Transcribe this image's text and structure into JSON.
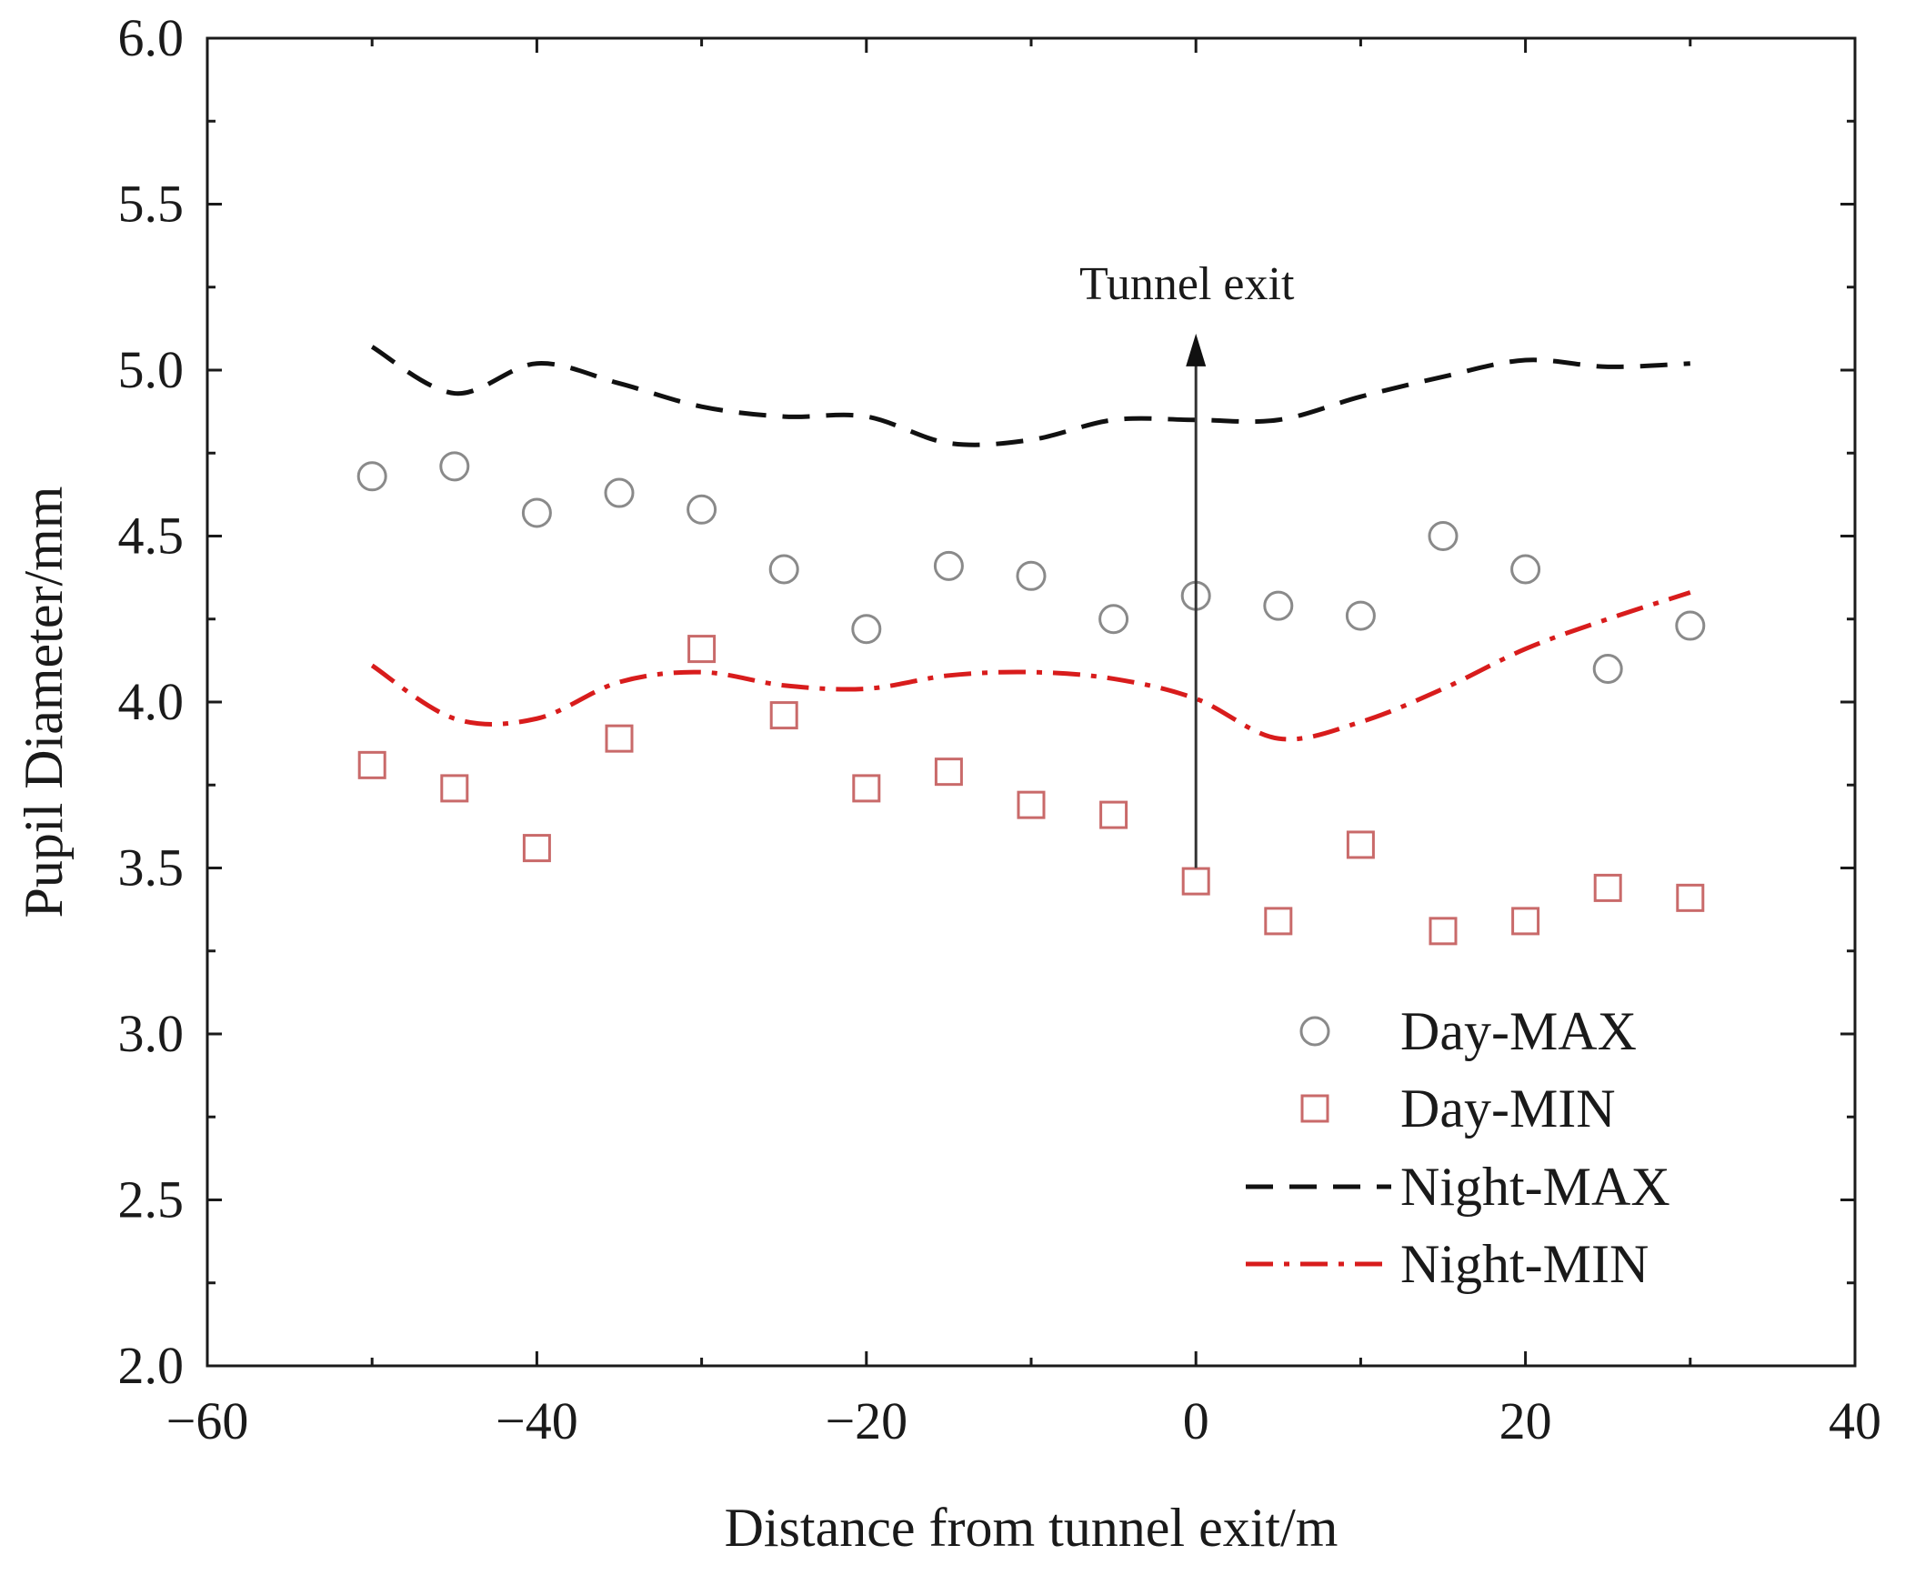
{
  "chart_data": {
    "type": "scatter",
    "xlabel": "Distance from tunnel exit/m",
    "ylabel": "Pupil Diameter/mm",
    "xlim": [
      -60,
      40
    ],
    "ylim": [
      2.0,
      6.0
    ],
    "x_ticks": [
      -60,
      -40,
      -20,
      0,
      20,
      40
    ],
    "y_ticks": [
      2.0,
      2.5,
      3.0,
      3.5,
      4.0,
      4.5,
      5.0,
      5.5,
      6.0
    ],
    "x_tick_labels": [
      "−60",
      "−40",
      "−20",
      "0",
      "20",
      "40"
    ],
    "y_tick_labels": [
      "2.0",
      "2.5",
      "3.0",
      "3.5",
      "4.0",
      "4.5",
      "5.0",
      "5.5",
      "6.0"
    ],
    "grid": false,
    "legend_position": "bottom-right",
    "x": [
      -50,
      -45,
      -40,
      -35,
      -30,
      -25,
      -20,
      -15,
      -10,
      -5,
      0,
      5,
      10,
      15,
      20,
      25,
      30
    ],
    "series": [
      {
        "name": "Day-MAX",
        "style": "open-circle",
        "color": "#8a8a8a",
        "values": [
          4.68,
          4.71,
          4.57,
          4.63,
          4.58,
          4.4,
          4.22,
          4.41,
          4.38,
          4.25,
          4.32,
          4.29,
          4.26,
          4.5,
          4.4,
          4.1,
          4.23
        ]
      },
      {
        "name": "Day-MIN",
        "style": "open-square",
        "color": "#c96a6a",
        "values": [
          3.81,
          3.74,
          3.56,
          3.89,
          4.16,
          3.96,
          3.74,
          3.79,
          3.69,
          3.66,
          3.46,
          3.34,
          3.57,
          3.31,
          3.34,
          3.44,
          3.41
        ]
      },
      {
        "name": "Night-MAX",
        "style": "dashed-line",
        "color": "#111111",
        "values": [
          5.07,
          4.93,
          5.02,
          4.96,
          4.89,
          4.86,
          4.86,
          4.78,
          4.79,
          4.85,
          4.85,
          4.85,
          4.92,
          4.98,
          5.03,
          5.01,
          5.02
        ]
      },
      {
        "name": "Night-MIN",
        "style": "dash-dot-line",
        "color": "#d81c1c",
        "values": [
          4.11,
          3.95,
          3.95,
          4.06,
          4.09,
          4.05,
          4.04,
          4.08,
          4.09,
          4.07,
          4.01,
          3.89,
          3.94,
          4.04,
          4.16,
          4.25,
          4.33
        ]
      }
    ],
    "annotations": [
      {
        "text": "Tunnel exit",
        "x": 0,
        "y_from": 3.5,
        "y_to": 5.11
      }
    ]
  }
}
